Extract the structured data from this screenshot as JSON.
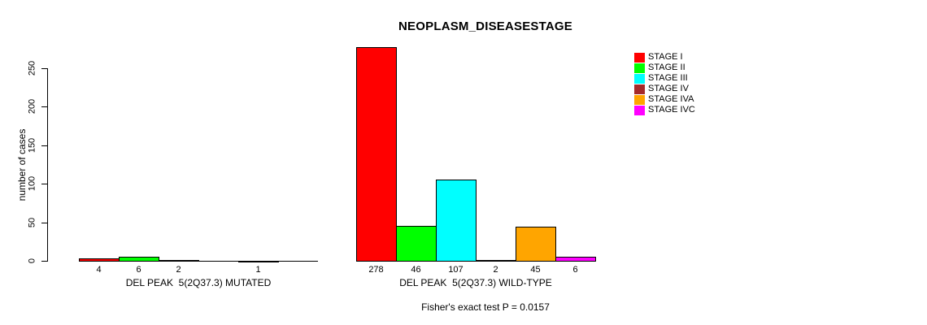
{
  "chart_data": {
    "type": "bar",
    "title": "NEOPLASM_DISEASESTAGE",
    "ylabel": "number of cases",
    "footnote": "Fisher's exact test P = 0.0157",
    "ylim": [
      0,
      250
    ],
    "yticks": [
      0,
      50,
      100,
      150,
      200,
      250
    ],
    "grid": false,
    "legend_position": "right",
    "legend": [
      {
        "label": "STAGE I",
        "color": "#FF0000"
      },
      {
        "label": "STAGE II",
        "color": "#00FF00"
      },
      {
        "label": "STAGE III",
        "color": "#00FFFF"
      },
      {
        "label": "STAGE IV",
        "color": "#A52A2A"
      },
      {
        "label": "STAGE IVA",
        "color": "#FFA500"
      },
      {
        "label": "STAGE IVC",
        "color": "#FF00FF"
      }
    ],
    "groups": [
      {
        "label": "DEL PEAK  5(2Q37.3) MUTATED",
        "bars": [
          {
            "stage": "STAGE I",
            "value": 4,
            "count_label": "4",
            "color": "#FF0000"
          },
          {
            "stage": "STAGE II",
            "value": 6,
            "count_label": "6",
            "color": "#00FF00"
          },
          {
            "stage": "STAGE III",
            "value": 2,
            "count_label": "2",
            "color": "#00FFFF"
          },
          {
            "stage": "STAGE IV",
            "value": 0,
            "count_label": "",
            "color": "#A52A2A"
          },
          {
            "stage": "STAGE IVA",
            "value": 1,
            "count_label": "1",
            "color": "#FFA500"
          },
          {
            "stage": "STAGE IVC",
            "value": 0,
            "count_label": "",
            "color": "#FF00FF"
          }
        ]
      },
      {
        "label": "DEL PEAK  5(2Q37.3) WILD-TYPE",
        "bars": [
          {
            "stage": "STAGE I",
            "value": 278,
            "count_label": "278",
            "color": "#FF0000"
          },
          {
            "stage": "STAGE II",
            "value": 46,
            "count_label": "46",
            "color": "#00FF00"
          },
          {
            "stage": "STAGE III",
            "value": 107,
            "count_label": "107",
            "color": "#00FFFF"
          },
          {
            "stage": "STAGE IV",
            "value": 2,
            "count_label": "2",
            "color": "#A52A2A"
          },
          {
            "stage": "STAGE IVA",
            "value": 45,
            "count_label": "45",
            "color": "#FFA500"
          },
          {
            "stage": "STAGE IVC",
            "value": 6,
            "count_label": "6",
            "color": "#FF00FF"
          }
        ]
      }
    ]
  }
}
